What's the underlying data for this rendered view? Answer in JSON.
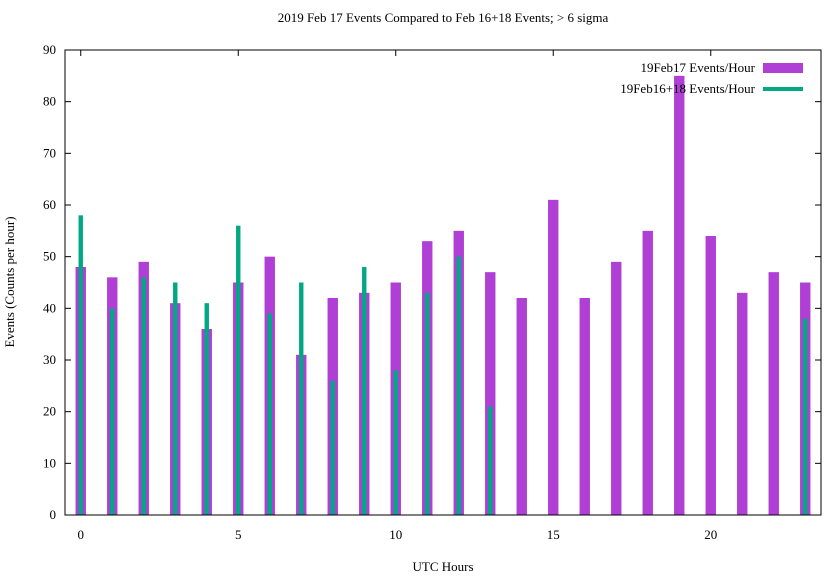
{
  "chart_data": {
    "type": "bar",
    "title": "2019 Feb 17 Events Compared to Feb 16+18 Events; > 6 sigma",
    "xlabel": "UTC Hours",
    "ylabel": "Events (Counts per hour)",
    "xlim": [
      -0.5,
      23.5
    ],
    "ylim": [
      0,
      90
    ],
    "xticks": [
      0,
      5,
      10,
      15,
      20
    ],
    "yticks": [
      0,
      10,
      20,
      30,
      40,
      50,
      60,
      70,
      80,
      90
    ],
    "grid": false,
    "legend_position": "top-right",
    "x": [
      0,
      1,
      2,
      3,
      4,
      5,
      6,
      7,
      8,
      9,
      10,
      11,
      12,
      13,
      14,
      15,
      16,
      17,
      18,
      19,
      20,
      21,
      22,
      23
    ],
    "series": [
      {
        "name": "19Feb17 Events/Hour",
        "color": "#b03fd6",
        "values": [
          48,
          46,
          49,
          41,
          36,
          45,
          50,
          31,
          42,
          43,
          45,
          53,
          55,
          47,
          42,
          61,
          42,
          49,
          55,
          85,
          54,
          43,
          47,
          45
        ]
      },
      {
        "name": "19Feb16+18 Events/Hour",
        "color": "#00a883",
        "values": [
          58,
          40,
          46,
          45,
          41,
          56,
          39,
          45,
          26,
          48,
          28,
          43,
          50,
          21,
          0,
          0,
          0,
          0,
          0,
          0,
          0,
          0,
          0,
          38
        ]
      }
    ]
  }
}
